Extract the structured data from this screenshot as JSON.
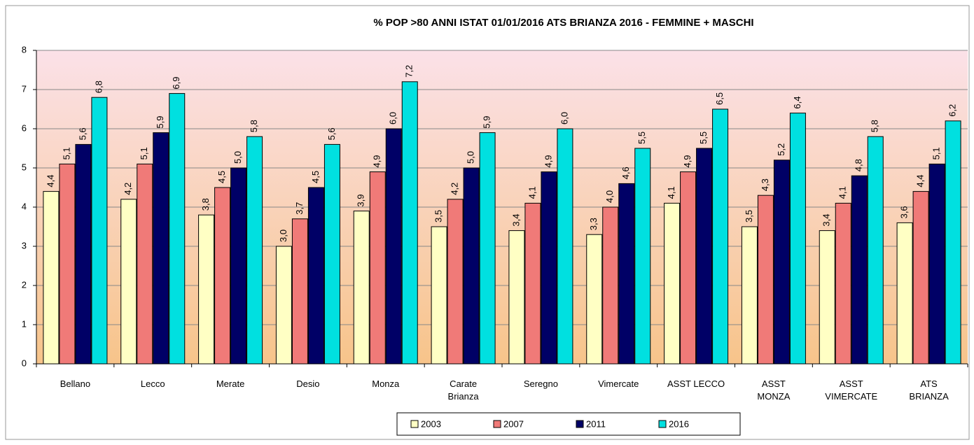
{
  "chart_data": {
    "type": "bar",
    "title": "% POP >80 ANNI ISTAT 01/01/2016 ATS BRIANZA 2016 - FEMMINE +  MASCHI",
    "categories": [
      "Bellano",
      "Lecco",
      "Merate",
      "Desio",
      "Monza",
      "Carate Brianza",
      "Seregno",
      "Vimercate",
      "ASST LECCO",
      "ASST MONZA",
      "ASST VIMERCATE",
      "ATS BRIANZA"
    ],
    "series": [
      {
        "name": "2003",
        "color": "#ffffc4",
        "values": [
          4.4,
          4.2,
          3.8,
          3.0,
          3.9,
          3.5,
          3.4,
          3.3,
          4.1,
          3.5,
          3.4,
          3.6
        ],
        "value_labels": [
          "4,4",
          "4,2",
          "3,8",
          "3,0",
          "3,9",
          "3,5",
          "3,4",
          "3,3",
          "4,1",
          "3,5",
          "3,4",
          "3,6"
        ]
      },
      {
        "name": "2007",
        "color": "#f07a78",
        "values": [
          5.1,
          5.1,
          4.5,
          3.7,
          4.9,
          4.2,
          4.1,
          4.0,
          4.9,
          4.3,
          4.1,
          4.4
        ],
        "value_labels": [
          "5,1",
          "5,1",
          "4,5",
          "3,7",
          "4,9",
          "4,2",
          "4,1",
          "4,0",
          "4,9",
          "4,3",
          "4,1",
          "4,4"
        ]
      },
      {
        "name": "2011",
        "color": "#000066",
        "values": [
          5.6,
          5.9,
          5.0,
          4.5,
          6.0,
          5.0,
          4.9,
          4.6,
          5.5,
          5.2,
          4.8,
          5.1
        ],
        "value_labels": [
          "5,6",
          "5,9",
          "5,0",
          "4,5",
          "6,0",
          "5,0",
          "4,9",
          "4,6",
          "5,5",
          "5,2",
          "4,8",
          "5,1"
        ]
      },
      {
        "name": "2016",
        "color": "#00e0e0",
        "values": [
          6.8,
          6.9,
          5.8,
          5.6,
          7.2,
          5.9,
          6.0,
          5.5,
          6.5,
          6.4,
          5.8,
          6.2
        ],
        "value_labels": [
          "6,8",
          "6,9",
          "5,8",
          "5,6",
          "7,2",
          "5,9",
          "6,0",
          "5,5",
          "6,5",
          "6,4",
          "5,8",
          "6,2"
        ]
      }
    ],
    "ylim": [
      0,
      8
    ],
    "yticks": [
      0,
      1,
      2,
      3,
      4,
      5,
      6,
      7,
      8
    ],
    "grid": true,
    "legend": "bottom"
  }
}
